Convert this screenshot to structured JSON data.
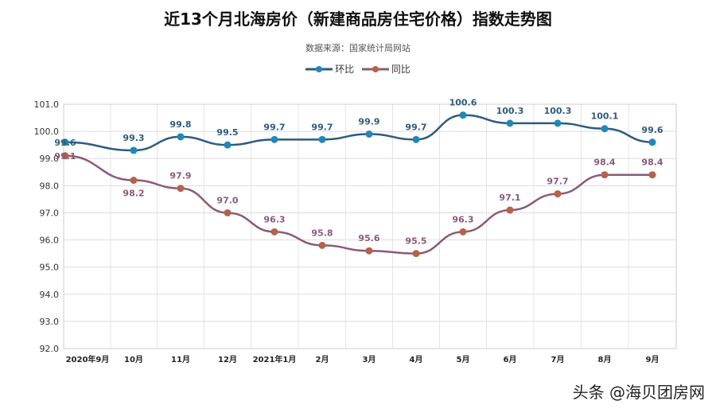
{
  "chart_data": {
    "type": "line",
    "title": "近13个月北海房价（新建商品房住宅价格）指数走势图",
    "subtitle": "数据来源：国家统计局网站",
    "categories": [
      "2020年9月",
      "10月",
      "11月",
      "12月",
      "2021年1月",
      "2月",
      "3月",
      "4月",
      "5月",
      "6月",
      "7月",
      "8月",
      "9月"
    ],
    "series": [
      {
        "name": "环比",
        "color": "#2e5b7e",
        "marker": "#1f88b8",
        "values": [
          99.6,
          99.3,
          99.8,
          99.5,
          99.7,
          99.7,
          99.9,
          99.7,
          100.6,
          100.3,
          100.3,
          100.1,
          99.6
        ]
      },
      {
        "name": "同比",
        "color": "#8a5a7a",
        "marker": "#b5624a",
        "values": [
          99.1,
          98.2,
          97.9,
          97.0,
          96.3,
          95.8,
          95.6,
          95.5,
          96.3,
          97.1,
          97.7,
          98.4,
          98.4
        ]
      }
    ],
    "ylim": [
      92.0,
      101.0
    ],
    "yticks": [
      "92.0",
      "93.0",
      "94.0",
      "95.0",
      "96.0",
      "97.0",
      "98.0",
      "99.0",
      "100.0",
      "101.0"
    ],
    "grid": true,
    "legend": "top"
  },
  "watermark": "头条 @海贝团房网"
}
